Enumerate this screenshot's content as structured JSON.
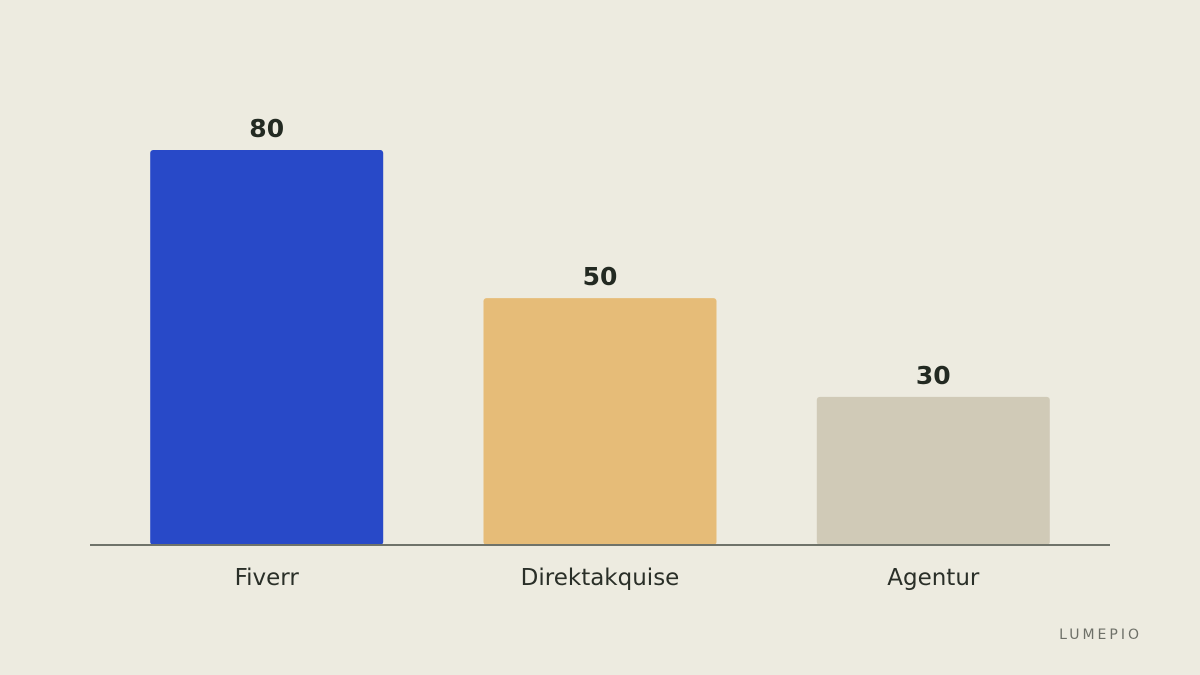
{
  "brand": "LUMEPIO",
  "chart_data": {
    "type": "bar",
    "categories": [
      "Fiverr",
      "Direktakquise",
      "Agentur"
    ],
    "values": [
      80,
      50,
      30
    ],
    "colors": [
      "#2849C8",
      "#E6BC78",
      "#D0CAB7"
    ],
    "ylim": [
      0,
      80
    ],
    "grid": false,
    "legend": "none",
    "axis_color": "#6F736A",
    "background": "#EDEBE0"
  }
}
